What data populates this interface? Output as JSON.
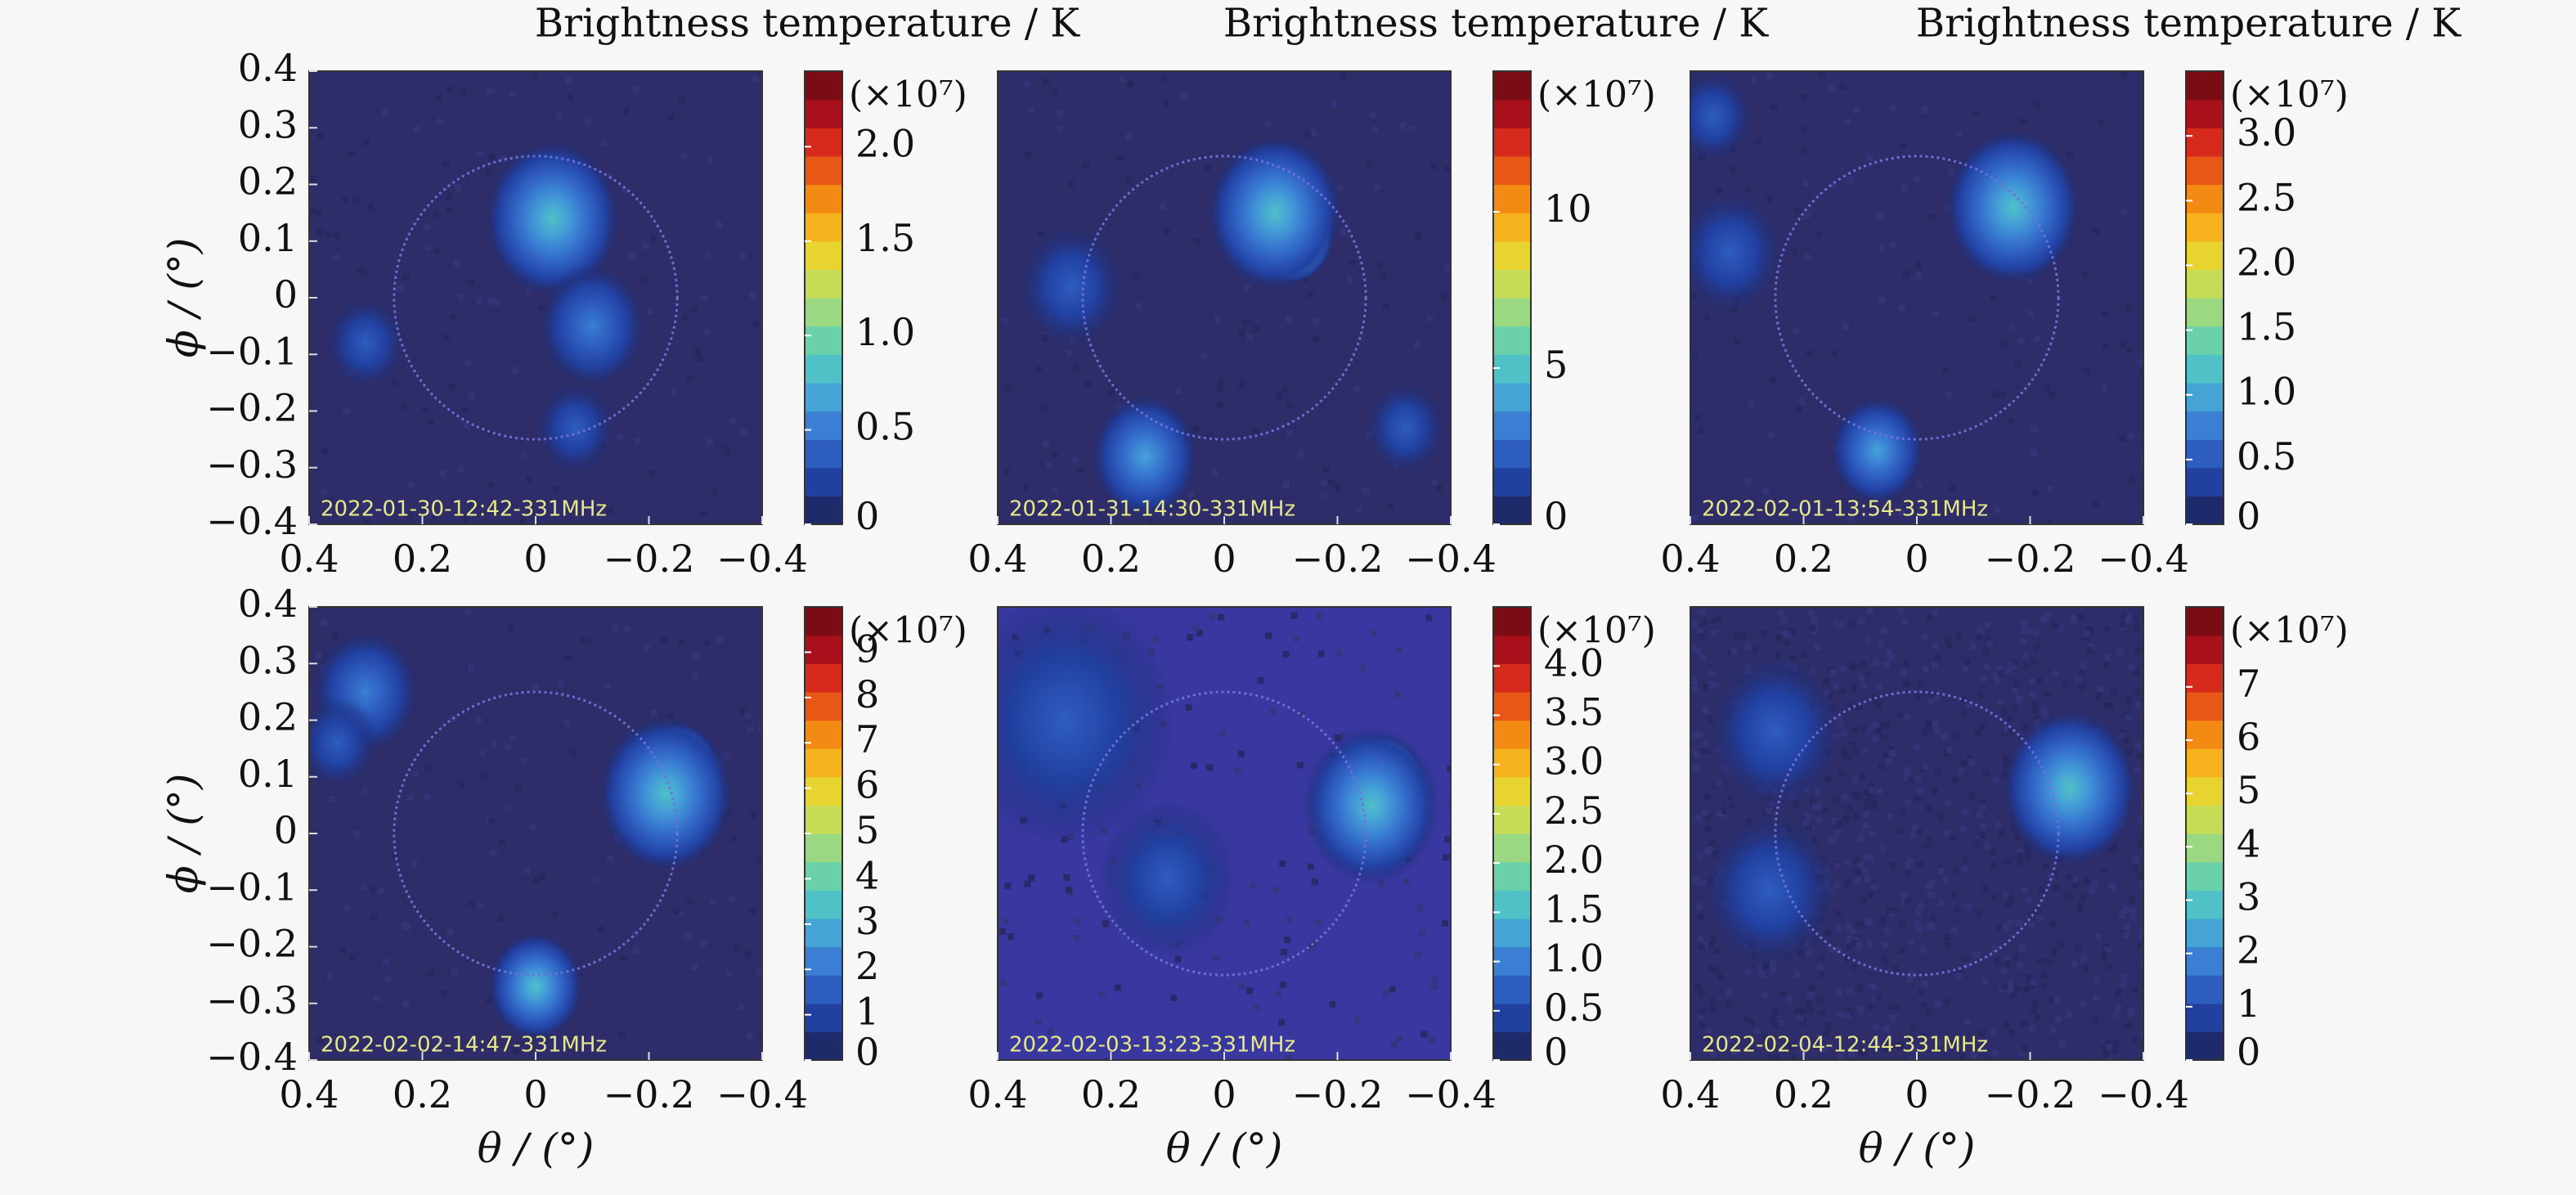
{
  "colormap": [
    "#1f2a6b",
    "#2140a0",
    "#2e5dc0",
    "#3a7fd3",
    "#46a3d6",
    "#4fc1c7",
    "#6bd1a8",
    "#9ad882",
    "#c6dc56",
    "#e8d430",
    "#f5b21c",
    "#f28a14",
    "#e95716",
    "#d62a1c",
    "#a8101c",
    "#7a0c14"
  ],
  "chart_data": [
    {
      "type": "heatmap",
      "title": "Brightness temperature / K",
      "timestamp": "2022-01-30-12:42-331MHz",
      "xlabel": "",
      "ylabel": "ϕ / (°)",
      "xlim": [
        0.4,
        -0.4
      ],
      "ylim": [
        -0.4,
        0.4
      ],
      "xticks": [
        "0.4",
        "0.2",
        "0",
        "−0.2",
        "−0.4"
      ],
      "yticks": [
        "0.4",
        "0.3",
        "0.2",
        "0.1",
        "0",
        "−0.1",
        "−0.2",
        "−0.3",
        "−0.4"
      ],
      "disk_radius": 0.25,
      "background": "#2e2d6a",
      "colorbar": {
        "multiplier": "(×10⁷)",
        "range": [
          0,
          2.4
        ],
        "ticks": [
          0,
          0.5,
          1.0,
          1.5,
          2.0
        ],
        "labels": [
          "0",
          "0.5",
          "1.0",
          "1.5",
          "2.0"
        ]
      },
      "sources": [
        {
          "x": -0.03,
          "y": 0.11,
          "peak": 1,
          "radius": 0.03
        },
        {
          "x": -0.03,
          "y": 0.14,
          "peak": 0.35,
          "radius": 0.05
        },
        {
          "x": -0.1,
          "y": -0.05,
          "peak": 0.2,
          "radius": 0.04
        },
        {
          "x": -0.07,
          "y": -0.23,
          "peak": 0.15,
          "radius": 0.03
        },
        {
          "x": 0.3,
          "y": -0.08,
          "peak": 0.15,
          "radius": 0.03
        }
      ]
    },
    {
      "type": "heatmap",
      "title": "Brightness temperature / K",
      "timestamp": "2022-01-31-14:30-331MHz",
      "xlabel": "",
      "ylabel": "",
      "xlim": [
        0.4,
        -0.4
      ],
      "ylim": [
        -0.4,
        0.4
      ],
      "xticks": [
        "0.4",
        "0.2",
        "0",
        "−0.2",
        "−0.4"
      ],
      "yticks": [],
      "disk_radius": 0.25,
      "background": "#2e2d6a",
      "colorbar": {
        "multiplier": "(×10⁷)",
        "range": [
          0,
          14.5
        ],
        "ticks": [
          0,
          5,
          10
        ],
        "labels": [
          "0",
          "5",
          "10"
        ]
      },
      "sources": [
        {
          "x": -0.12,
          "y": 0.11,
          "peak": 1,
          "radius": 0.03
        },
        {
          "x": -0.09,
          "y": 0.15,
          "peak": 0.35,
          "radius": 0.05
        },
        {
          "x": 0.14,
          "y": -0.28,
          "peak": 0.25,
          "radius": 0.04
        },
        {
          "x": 0.27,
          "y": 0.02,
          "peak": 0.15,
          "radius": 0.04
        },
        {
          "x": -0.32,
          "y": -0.23,
          "peak": 0.12,
          "radius": 0.03
        }
      ]
    },
    {
      "type": "heatmap",
      "title": "Brightness temperature / K",
      "timestamp": "2022-02-01-13:54-331MHz",
      "xlabel": "",
      "ylabel": "",
      "xlim": [
        0.4,
        -0.4
      ],
      "ylim": [
        -0.4,
        0.4
      ],
      "xticks": [
        "0.4",
        "0.2",
        "0",
        "−0.2",
        "−0.4"
      ],
      "yticks": [],
      "disk_radius": 0.25,
      "background": "#2e2d6a",
      "colorbar": {
        "multiplier": "(×10⁷)",
        "range": [
          0,
          3.5
        ],
        "ticks": [
          0,
          0.5,
          1.0,
          1.5,
          2.0,
          2.5,
          3.0
        ],
        "labels": [
          "0",
          "0.5",
          "1.0",
          "1.5",
          "2.0",
          "2.5",
          "3.0"
        ]
      },
      "sources": [
        {
          "x": -0.19,
          "y": 0.13,
          "peak": 1,
          "radius": 0.03
        },
        {
          "x": -0.17,
          "y": 0.16,
          "peak": 0.35,
          "radius": 0.05
        },
        {
          "x": 0.07,
          "y": -0.27,
          "peak": 0.25,
          "radius": 0.035
        },
        {
          "x": 0.33,
          "y": 0.08,
          "peak": 0.15,
          "radius": 0.04
        },
        {
          "x": 0.36,
          "y": 0.32,
          "peak": 0.12,
          "radius": 0.03
        }
      ]
    },
    {
      "type": "heatmap",
      "title": "",
      "timestamp": "2022-02-02-14:47-331MHz",
      "xlabel": "θ / (°)",
      "ylabel": "ϕ / (°)",
      "xlim": [
        0.4,
        -0.4
      ],
      "ylim": [
        -0.4,
        0.4
      ],
      "xticks": [
        "0.4",
        "0.2",
        "0",
        "−0.2",
        "−0.4"
      ],
      "yticks": [
        "0.4",
        "0.3",
        "0.2",
        "0.1",
        "0",
        "−0.1",
        "−0.2",
        "−0.3",
        "−0.4"
      ],
      "disk_radius": 0.25,
      "background": "#2e2d6a",
      "colorbar": {
        "multiplier": "(×10⁷)",
        "range": [
          0,
          10
        ],
        "ticks": [
          0,
          1,
          2,
          3,
          4,
          5,
          6,
          7,
          8,
          9
        ],
        "labels": [
          "0",
          "1",
          "2",
          "3",
          "4",
          "5",
          "6",
          "7",
          "8",
          "9"
        ]
      },
      "sources": [
        {
          "x": -0.25,
          "y": 0.11,
          "peak": 1,
          "radius": 0.03
        },
        {
          "x": -0.23,
          "y": 0.07,
          "peak": 0.35,
          "radius": 0.05
        },
        {
          "x": 0.0,
          "y": -0.27,
          "peak": 0.3,
          "radius": 0.035
        },
        {
          "x": 0.3,
          "y": 0.25,
          "peak": 0.2,
          "radius": 0.04
        },
        {
          "x": 0.35,
          "y": 0.16,
          "peak": 0.15,
          "radius": 0.03
        }
      ]
    },
    {
      "type": "heatmap",
      "title": "",
      "timestamp": "2022-02-03-13:23-331MHz",
      "xlabel": "θ / (°)",
      "ylabel": "",
      "xlim": [
        0.4,
        -0.4
      ],
      "ylim": [
        -0.4,
        0.4
      ],
      "xticks": [
        "0.4",
        "0.2",
        "0",
        "−0.2",
        "−0.4"
      ],
      "yticks": [],
      "disk_radius": 0.25,
      "background": "#3838a0",
      "colorbar": {
        "multiplier": "(×10⁷)",
        "range": [
          0,
          4.6
        ],
        "ticks": [
          0,
          0.5,
          1.0,
          1.5,
          2.0,
          2.5,
          3.0,
          3.5,
          4.0
        ],
        "labels": [
          "0",
          "0.5",
          "1.0",
          "1.5",
          "2.0",
          "2.5",
          "3.0",
          "3.5",
          "4.0"
        ]
      },
      "sources": [
        {
          "x": -0.28,
          "y": 0.09,
          "peak": 1,
          "radius": 0.03
        },
        {
          "x": -0.26,
          "y": 0.05,
          "peak": 0.3,
          "radius": 0.05
        },
        {
          "x": 0.28,
          "y": 0.2,
          "peak": 0.12,
          "radius": 0.08
        },
        {
          "x": 0.1,
          "y": -0.08,
          "peak": 0.1,
          "radius": 0.05
        }
      ]
    },
    {
      "type": "heatmap",
      "title": "",
      "timestamp": "2022-02-04-12:44-331MHz",
      "xlabel": "θ / (°)",
      "ylabel": "",
      "xlim": [
        0.4,
        -0.4
      ],
      "ylim": [
        -0.4,
        0.4
      ],
      "xticks": [
        "0.4",
        "0.2",
        "0",
        "−0.2",
        "−0.4"
      ],
      "yticks": [],
      "disk_radius": 0.25,
      "background": "#2e2d6a",
      "colorbar": {
        "multiplier": "(×10⁷)",
        "range": [
          0,
          8.5
        ],
        "ticks": [
          0,
          1,
          2,
          3,
          4,
          5,
          6,
          7
        ],
        "labels": [
          "0",
          "1",
          "2",
          "3",
          "4",
          "5",
          "6",
          "7"
        ]
      },
      "sources": [
        {
          "x": -0.29,
          "y": 0.05,
          "peak": 1,
          "radius": 0.03
        },
        {
          "x": -0.27,
          "y": 0.08,
          "peak": 0.35,
          "radius": 0.05
        },
        {
          "x": 0.25,
          "y": 0.18,
          "peak": 0.15,
          "radius": 0.05
        },
        {
          "x": 0.26,
          "y": -0.1,
          "peak": 0.12,
          "radius": 0.05
        }
      ]
    }
  ]
}
